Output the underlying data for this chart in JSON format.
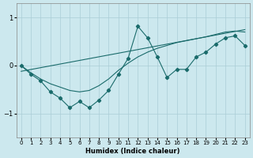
{
  "xlabel": "Humidex (Indice chaleur)",
  "background_color": "#cce8ee",
  "line_color": "#1a6b6b",
  "grid_color": "#aacdd6",
  "xlim": [
    -0.5,
    23.5
  ],
  "ylim": [
    -1.5,
    1.3
  ],
  "yticks": [
    -1,
    0,
    1
  ],
  "xticks": [
    0,
    1,
    2,
    3,
    4,
    5,
    6,
    7,
    8,
    9,
    10,
    11,
    12,
    13,
    14,
    15,
    16,
    17,
    18,
    19,
    20,
    21,
    22,
    23
  ],
  "series1_x": [
    0,
    1,
    2,
    3,
    4,
    5,
    6,
    7,
    8,
    9,
    10,
    11,
    12,
    13,
    14,
    15,
    16,
    17,
    18,
    19,
    20,
    21,
    22,
    23
  ],
  "series1_y": [
    0.0,
    -0.18,
    -0.32,
    -0.55,
    -0.68,
    -0.88,
    -0.75,
    -0.88,
    -0.72,
    -0.52,
    -0.18,
    0.15,
    0.82,
    0.58,
    0.18,
    -0.25,
    -0.08,
    -0.08,
    0.18,
    0.28,
    0.45,
    0.58,
    0.62,
    0.42
  ],
  "series2_x": [
    0,
    1,
    2,
    3,
    4,
    5,
    6,
    7,
    8,
    9,
    10,
    11,
    12,
    13,
    14,
    15,
    16,
    17,
    18,
    19,
    20,
    21,
    22,
    23
  ],
  "series2_y": [
    0.0,
    -0.15,
    -0.28,
    -0.38,
    -0.45,
    -0.52,
    -0.55,
    -0.52,
    -0.42,
    -0.28,
    -0.1,
    0.05,
    0.18,
    0.28,
    0.36,
    0.42,
    0.48,
    0.52,
    0.56,
    0.6,
    0.65,
    0.7,
    0.72,
    0.7
  ],
  "series3_x": [
    0,
    23
  ],
  "series3_y": [
    -0.12,
    0.75
  ]
}
